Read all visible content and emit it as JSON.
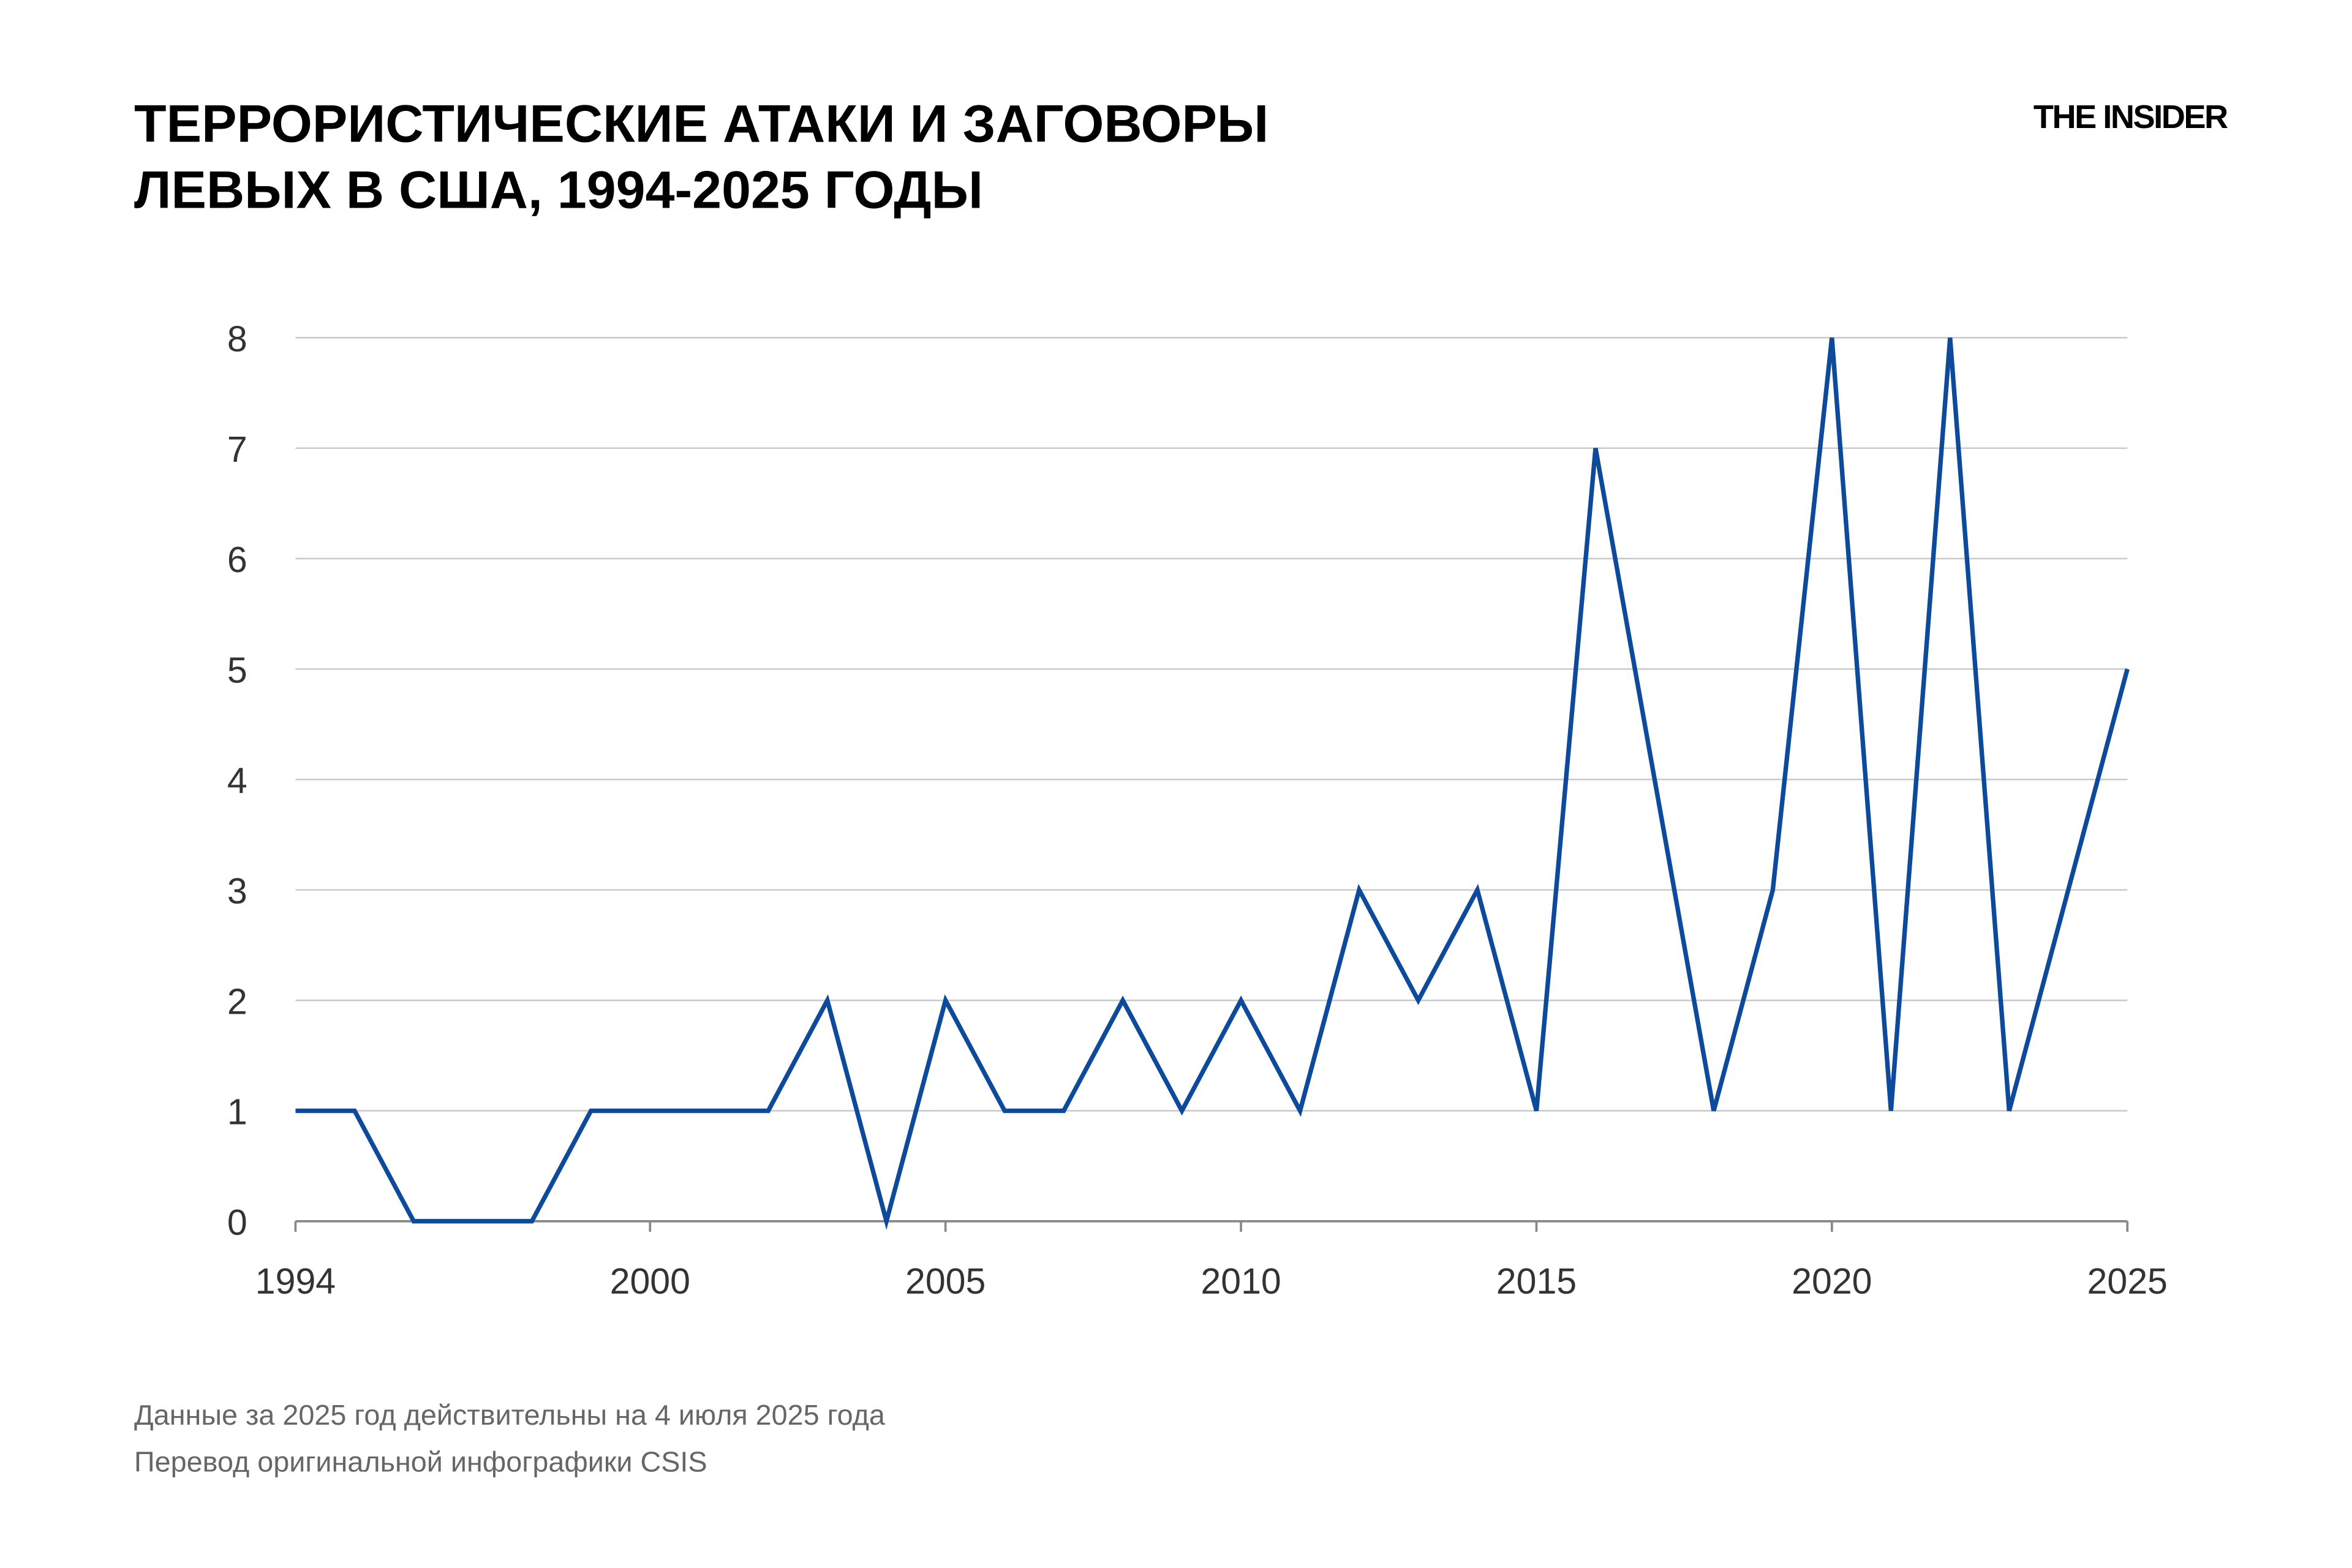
{
  "chart_data": {
    "type": "line",
    "title": [
      "ТЕРРОРИСТИЧЕСКИЕ АТАКИ И ЗАГОВОРЫ",
      "ЛЕВЫХ В США, 1994-2025 ГОДЫ"
    ],
    "brand": "THE INSIDER",
    "notes": [
      "Данные за 2025 год действительны на 4 июля 2025 года",
      "Перевод оригинальной инфографики CSIS"
    ],
    "x": [
      1994,
      1995,
      1996,
      1997,
      1998,
      1999,
      2000,
      2001,
      2002,
      2003,
      2004,
      2005,
      2006,
      2007,
      2008,
      2009,
      2010,
      2011,
      2012,
      2013,
      2014,
      2015,
      2016,
      2017,
      2018,
      2019,
      2020,
      2021,
      2022,
      2023,
      2024,
      2025
    ],
    "values": [
      1,
      1,
      0,
      0,
      0,
      1,
      1,
      1,
      1,
      2,
      0,
      2,
      1,
      1,
      2,
      1,
      2,
      1,
      3,
      2,
      3,
      1,
      7,
      4,
      1,
      3,
      8,
      1,
      8,
      1,
      3,
      5
    ],
    "color": "#0d4a9b",
    "xlim": [
      1994,
      2025
    ],
    "xticks": [
      1994,
      2000,
      2005,
      2010,
      2015,
      2020,
      2025
    ],
    "ylim": [
      0,
      8
    ],
    "yticks": [
      0,
      1,
      2,
      3,
      4,
      5,
      6,
      7,
      8
    ],
    "grid": true
  }
}
